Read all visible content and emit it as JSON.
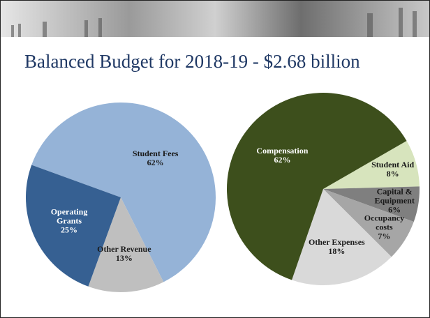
{
  "title": "Balanced Budget for 2018-19 - $2.68 billion",
  "chart_data": [
    {
      "type": "pie",
      "categories": [
        "Student Fees",
        "Other Revenue",
        "Operating Grants"
      ],
      "values": [
        62,
        13,
        25
      ],
      "value_labels": [
        "62%",
        "13%",
        "25%"
      ],
      "colors": [
        "#95b3d7",
        "#bfbfbf",
        "#366092"
      ]
    },
    {
      "type": "pie",
      "categories": [
        "Student Aid",
        "Capital & Equipment",
        "Occupancy costs",
        "Other Expenses",
        "Compensation"
      ],
      "values": [
        8,
        6,
        7,
        18,
        62
      ],
      "value_labels": [
        "8%",
        "6%",
        "7%",
        "18%",
        "62%"
      ],
      "colors": [
        "#d7e4bd",
        "#7f7f7f",
        "#a6a6a6",
        "#d9d9d9",
        "#3d4f1c"
      ]
    }
  ]
}
